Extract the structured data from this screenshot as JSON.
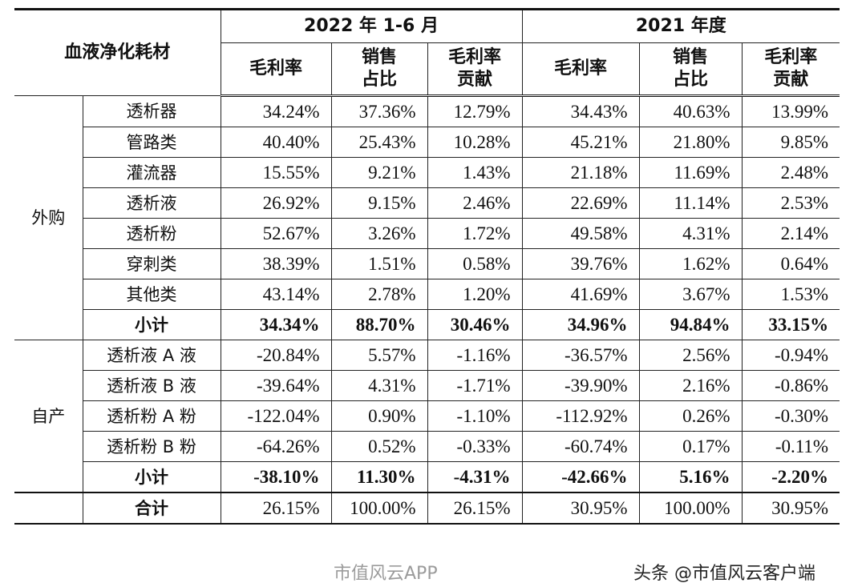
{
  "header": {
    "corner": "血液净化耗材",
    "period1": "2022 年 1-6 月",
    "period2": "2021 年度",
    "cols": [
      "毛利率",
      "销售\n占比",
      "毛利率\n贡献",
      "毛利率",
      "销售\n占比",
      "毛利率\n贡献"
    ]
  },
  "groups": [
    {
      "name": "外购",
      "rows": [
        {
          "name": "透析器",
          "v": [
            "34.24%",
            "37.36%",
            "12.79%",
            "34.43%",
            "40.63%",
            "13.99%"
          ]
        },
        {
          "name": "管路类",
          "v": [
            "40.40%",
            "25.43%",
            "10.28%",
            "45.21%",
            "21.80%",
            "9.85%"
          ]
        },
        {
          "name": "灌流器",
          "v": [
            "15.55%",
            "9.21%",
            "1.43%",
            "21.18%",
            "11.69%",
            "2.48%"
          ]
        },
        {
          "name": "透析液",
          "v": [
            "26.92%",
            "9.15%",
            "2.46%",
            "22.69%",
            "11.14%",
            "2.53%"
          ]
        },
        {
          "name": "透析粉",
          "v": [
            "52.67%",
            "3.26%",
            "1.72%",
            "49.58%",
            "4.31%",
            "2.14%"
          ]
        },
        {
          "name": "穿刺类",
          "v": [
            "38.39%",
            "1.51%",
            "0.58%",
            "39.76%",
            "1.62%",
            "0.64%"
          ]
        },
        {
          "name": "其他类",
          "v": [
            "43.14%",
            "2.78%",
            "1.20%",
            "41.69%",
            "3.67%",
            "1.53%"
          ]
        }
      ],
      "subtotal": {
        "name": "小计",
        "v": [
          "34.34%",
          "88.70%",
          "30.46%",
          "34.96%",
          "94.84%",
          "33.15%"
        ]
      }
    },
    {
      "name": "自产",
      "rows": [
        {
          "name": "透析液 A 液",
          "v": [
            "-20.84%",
            "5.57%",
            "-1.16%",
            "-36.57%",
            "2.56%",
            "-0.94%"
          ]
        },
        {
          "name": "透析液 B 液",
          "v": [
            "-39.64%",
            "4.31%",
            "-1.71%",
            "-39.90%",
            "2.16%",
            "-0.86%"
          ]
        },
        {
          "name": "透析粉 A 粉",
          "v": [
            "-122.04%",
            "0.90%",
            "-1.10%",
            "-112.92%",
            "0.26%",
            "-0.30%"
          ]
        },
        {
          "name": "透析粉 B 粉",
          "v": [
            "-64.26%",
            "0.52%",
            "-0.33%",
            "-60.74%",
            "0.17%",
            "-0.11%"
          ]
        }
      ],
      "subtotal": {
        "name": "小计",
        "v": [
          "-38.10%",
          "11.30%",
          "-4.31%",
          "-42.66%",
          "5.16%",
          "-2.20%"
        ]
      }
    }
  ],
  "total": {
    "name": "合计",
    "v": [
      "26.15%",
      "100.00%",
      "26.15%",
      "30.95%",
      "100.00%",
      "30.95%"
    ]
  },
  "watermarks": {
    "center": "市值风云APP",
    "corner": "头条 @市值风云客户端"
  }
}
